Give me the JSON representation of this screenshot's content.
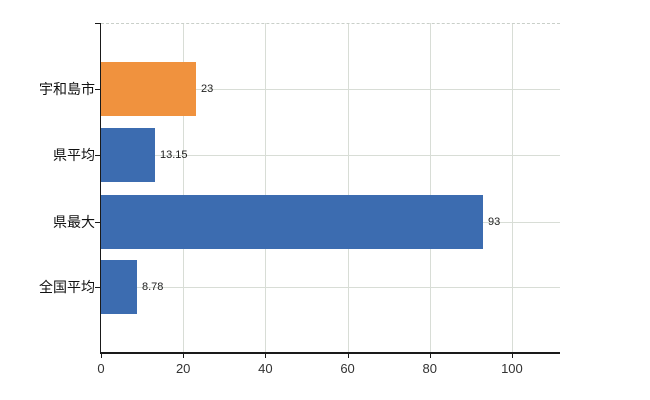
{
  "chart_data": {
    "type": "bar",
    "orientation": "horizontal",
    "title": "",
    "xlabel": "",
    "ylabel": "",
    "categories": [
      "宇和島市",
      "県平均",
      "県最大",
      "全国平均"
    ],
    "values": [
      23,
      13.15,
      93,
      8.78
    ],
    "value_labels": [
      "23",
      "13.15",
      "93",
      "8.78"
    ],
    "bar_colors": [
      "#F0923E",
      "#3C6CB0",
      "#3C6CB0",
      "#3C6CB0"
    ],
    "highlight_color": "#F0923E",
    "base_color": "#3C6CB0",
    "x_ticks": [
      "0",
      "20",
      "40",
      "60",
      "80",
      "100"
    ],
    "x_tick_values": [
      0,
      20,
      40,
      60,
      80,
      100
    ],
    "xlim": [
      0,
      111.7
    ],
    "grid": true,
    "legend": "none",
    "colors": {
      "grid": "#d8ddd6",
      "axis": "#1a1a1a",
      "tick": "#1a1a1a",
      "category_label": "#111111",
      "value_label": "#222222",
      "axis_label": "#333333",
      "background": "#ffffff"
    }
  }
}
